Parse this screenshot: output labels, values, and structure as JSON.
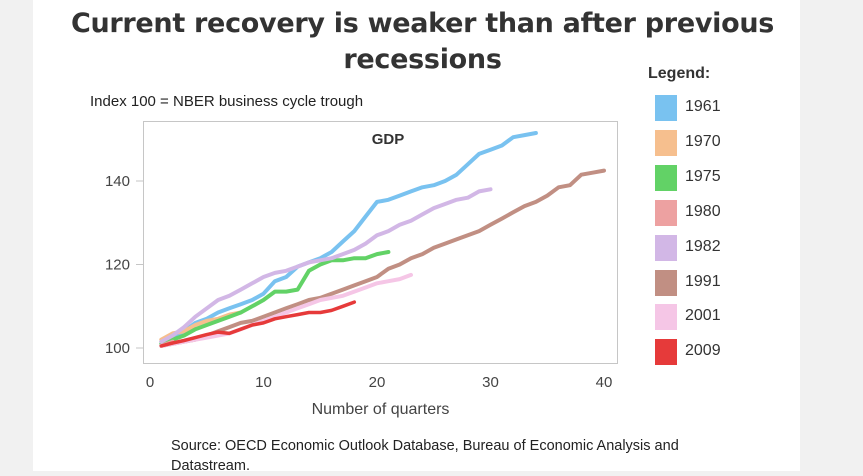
{
  "chart_data": {
    "type": "line",
    "title": "Current recovery is weaker than after previous recessions",
    "subtitle": "Index 100 = NBER business cycle trough",
    "plot_title": "GDP",
    "xlabel": "Number of quarters",
    "ylabel": "",
    "xlim": [
      0,
      40
    ],
    "ylim": [
      97,
      152
    ],
    "xticks": [
      0,
      10,
      20,
      30,
      40
    ],
    "yticks": [
      100,
      120,
      140
    ],
    "grid": false,
    "legend_title": "Legend:",
    "legend_position": "right",
    "source": "Source: OECD Economic Outlook Database, Bureau of Economic Analysis and Datastream.",
    "series": [
      {
        "name": "1961",
        "color": "#79c2f0",
        "x": [
          1,
          2,
          3,
          4,
          5,
          6,
          7,
          8,
          9,
          10,
          11,
          12,
          13,
          14,
          15,
          16,
          17,
          18,
          19,
          20,
          21,
          22,
          23,
          24,
          25,
          26,
          27,
          28,
          29,
          30,
          31,
          32,
          33,
          34
        ],
        "y": [
          101.5,
          102.5,
          104,
          106,
          107,
          108.5,
          109.5,
          110.5,
          111.5,
          113,
          116,
          117,
          119.5,
          120.5,
          121.5,
          123,
          125.5,
          128,
          131.5,
          135,
          135.5,
          136.5,
          137.5,
          138.5,
          139,
          140,
          141.5,
          144,
          146.5,
          147.5,
          148.5,
          150.5,
          151,
          151.5
        ]
      },
      {
        "name": "1970",
        "color": "#f6bf8e",
        "x": [
          1,
          2,
          3,
          4,
          5,
          6,
          7,
          8
        ],
        "y": [
          102,
          103.5,
          104,
          105.5,
          106.5,
          107,
          108,
          108.5
        ]
      },
      {
        "name": "1975",
        "color": "#62d266",
        "x": [
          1,
          2,
          3,
          4,
          5,
          6,
          7,
          8,
          9,
          10,
          11,
          12,
          13,
          14,
          15,
          16,
          17,
          18,
          19,
          20,
          21
        ],
        "y": [
          101,
          102,
          103,
          104.5,
          105.5,
          106.5,
          107.5,
          108.5,
          110,
          111.5,
          113.5,
          113.5,
          114,
          118.5,
          120,
          121,
          121,
          121.5,
          121.5,
          122.5,
          123
        ]
      },
      {
        "name": "1980",
        "color": "#eda1a1",
        "x": [
          1,
          2
        ],
        "y": [
          100.5,
          101.5
        ]
      },
      {
        "name": "1982",
        "color": "#d2b7e6",
        "x": [
          1,
          2,
          3,
          4,
          5,
          6,
          7,
          8,
          9,
          10,
          11,
          12,
          13,
          14,
          15,
          16,
          17,
          18,
          19,
          20,
          21,
          22,
          23,
          24,
          25,
          26,
          27,
          28,
          29,
          30
        ],
        "y": [
          101.5,
          103,
          105,
          107.5,
          109.5,
          111.5,
          112.5,
          114,
          115.5,
          117,
          118,
          118.5,
          119.5,
          120.5,
          121,
          121.5,
          122.5,
          123.5,
          125,
          127,
          128,
          129.5,
          130.5,
          132,
          133.5,
          134.5,
          135.5,
          136,
          137.5,
          138
        ]
      },
      {
        "name": "1991",
        "color": "#c18f83",
        "x": [
          1,
          2,
          3,
          4,
          5,
          6,
          7,
          8,
          9,
          10,
          11,
          12,
          13,
          14,
          15,
          16,
          17,
          18,
          19,
          20,
          21,
          22,
          23,
          24,
          25,
          26,
          27,
          28,
          29,
          30,
          31,
          32,
          33,
          34,
          35,
          36,
          37,
          38,
          39,
          40
        ],
        "y": [
          100.5,
          101,
          101.5,
          102,
          103,
          104,
          105,
          106,
          106.5,
          107.5,
          108.5,
          109.5,
          110.5,
          111.5,
          112,
          113,
          114,
          115,
          116,
          117,
          119,
          120,
          121.5,
          122.5,
          124,
          125,
          126,
          127,
          128,
          129.5,
          131,
          132.5,
          134,
          135,
          136.5,
          138.5,
          139,
          141.5,
          142,
          142.5
        ]
      },
      {
        "name": "2001",
        "color": "#f5c6e6",
        "x": [
          1,
          2,
          3,
          4,
          5,
          6,
          7,
          8,
          9,
          10,
          11,
          12,
          13,
          14,
          15,
          16,
          17,
          18,
          19,
          20,
          21,
          22,
          23
        ],
        "y": [
          100.5,
          101,
          101.5,
          102,
          102.5,
          103,
          103.5,
          104.5,
          105.5,
          106.5,
          107.5,
          108.5,
          109.5,
          110.5,
          111.5,
          112,
          112.5,
          113.5,
          114.5,
          115.5,
          116,
          116.5,
          117.5
        ]
      },
      {
        "name": "2009",
        "color": "#e63a3a",
        "x": [
          1,
          2,
          3,
          4,
          5,
          6,
          7,
          8,
          9,
          10,
          11,
          12,
          13,
          14,
          15,
          16,
          17,
          18
        ],
        "y": [
          100.5,
          101.2,
          101.8,
          102.5,
          103.2,
          103.8,
          103.5,
          104.5,
          105.5,
          106,
          107,
          107.5,
          108,
          108.5,
          108.5,
          109,
          110,
          111
        ]
      }
    ]
  }
}
